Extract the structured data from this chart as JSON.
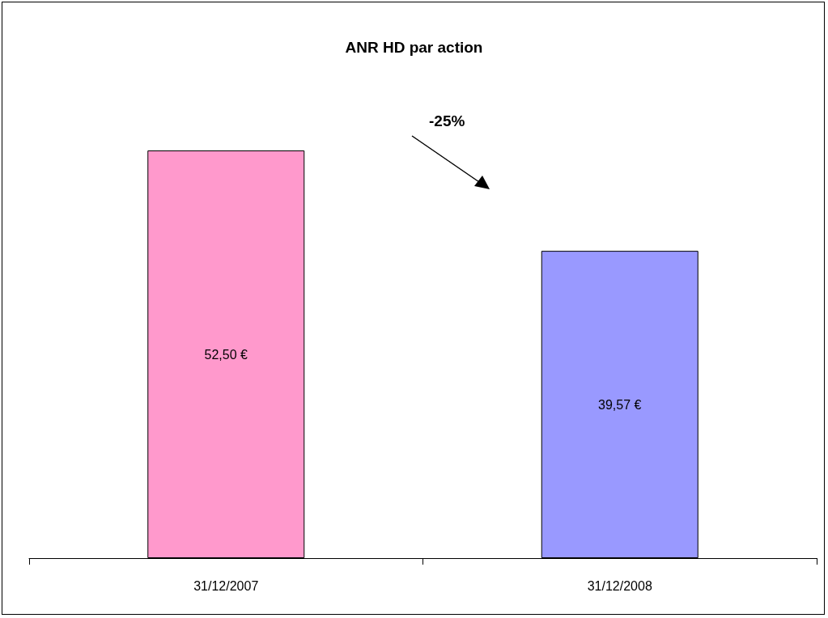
{
  "chart_data": {
    "type": "bar",
    "title": "ANR HD par action",
    "categories": [
      "31/12/2007",
      "31/12/2008"
    ],
    "values": [
      52.5,
      39.57
    ],
    "colors": [
      "#ff99cc",
      "#9999ff"
    ],
    "value_labels": [
      "52,50 €",
      "39,57 €"
    ],
    "annotations": [
      "-25%"
    ]
  }
}
